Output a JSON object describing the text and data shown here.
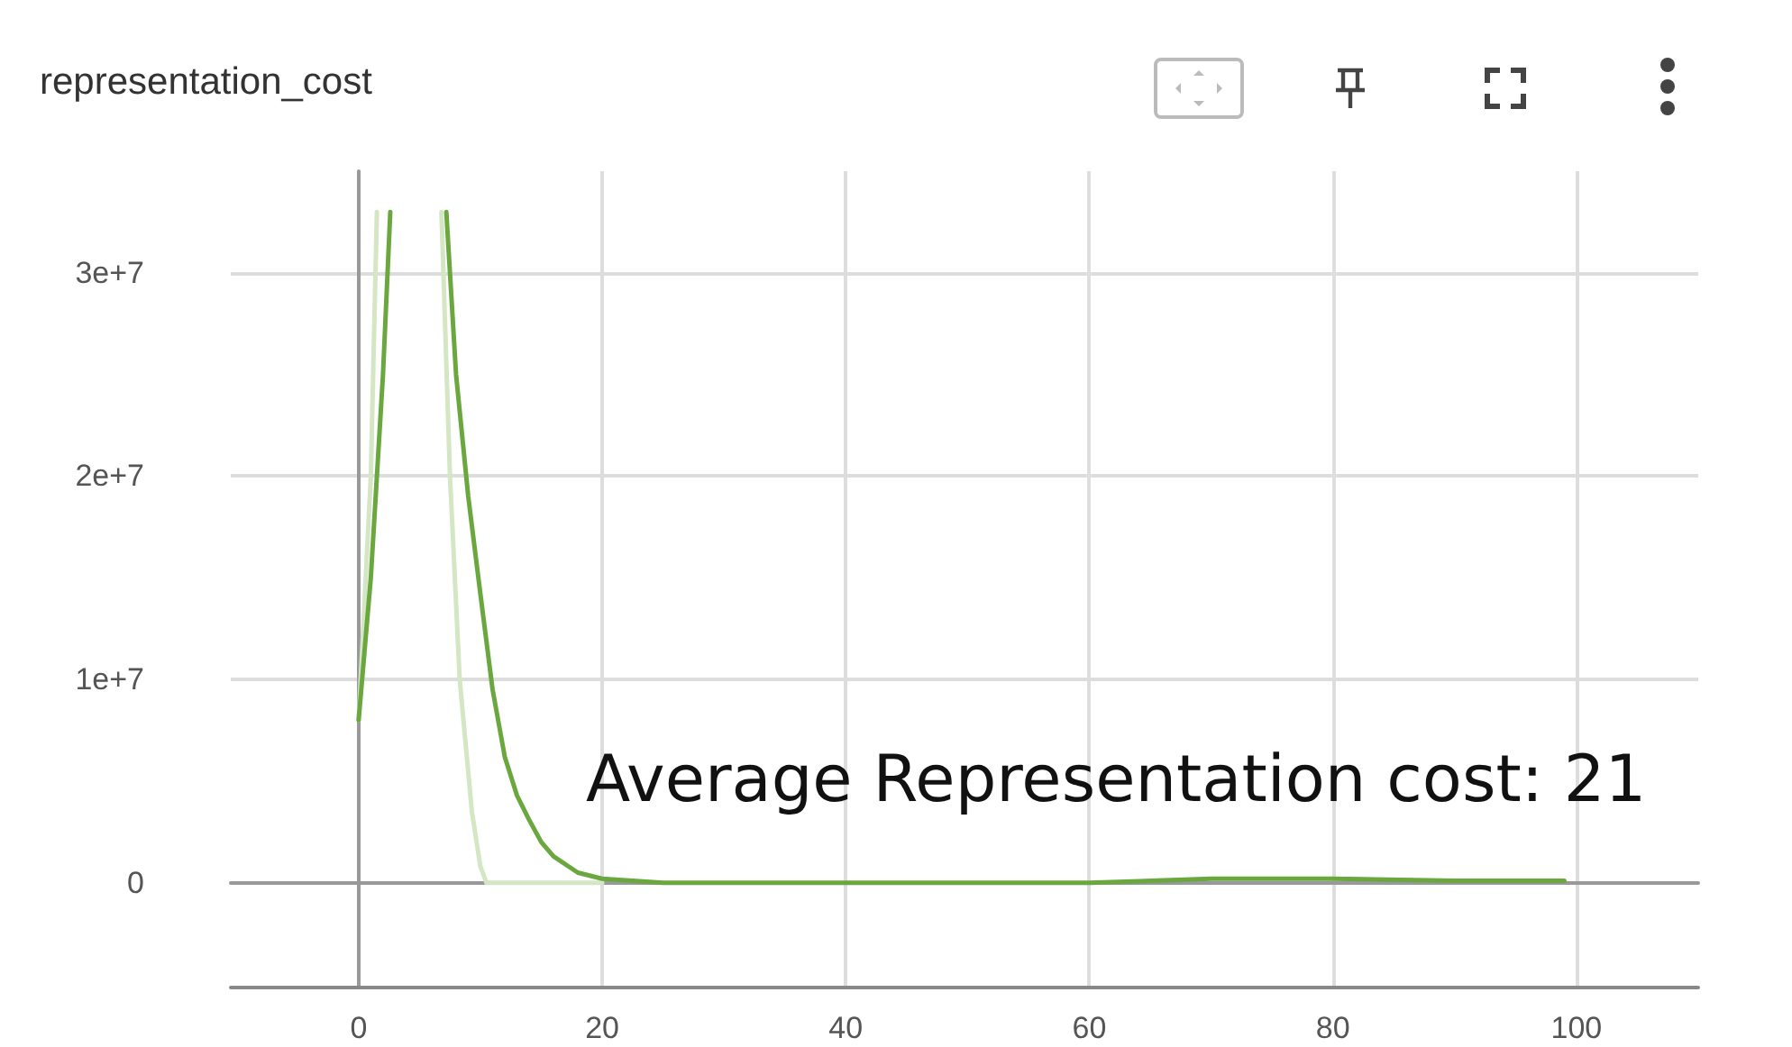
{
  "chart_data": {
    "type": "line",
    "title": "representation_cost",
    "annotations": [
      "Average Representation cost: 21"
    ],
    "xlim": [
      -10.5,
      110
    ],
    "xticks": [
      0,
      20,
      40,
      60,
      80,
      100
    ],
    "ylim": [
      -5150000,
      35000000
    ],
    "yticks": [
      {
        "value": 0,
        "label": "0"
      },
      {
        "value": 10000000,
        "label": "1e+7"
      },
      {
        "value": 20000000,
        "label": "2e+7"
      },
      {
        "value": 30000000,
        "label": "3e+7"
      }
    ],
    "grid": true,
    "marker": "none",
    "line_style": "solid",
    "series": [
      {
        "color": "#d4e6c3",
        "x": [
          0,
          1,
          1.5,
          4,
          6.8,
          7.5,
          8.3,
          9.3,
          10,
          10.5,
          12,
          15,
          20
        ],
        "values": [
          8000000,
          20000000,
          33000000,
          null,
          33000000,
          20000000,
          10000000,
          3500000,
          800000,
          0,
          0,
          0,
          0
        ]
      },
      {
        "color": "#6aa83f",
        "x": [
          0,
          1,
          2,
          2.6,
          5,
          7.2,
          8,
          9,
          10,
          11,
          12,
          13,
          14,
          15,
          16,
          18,
          20,
          25,
          30,
          40,
          50,
          60,
          70,
          75,
          80,
          90,
          99
        ],
        "values": [
          8000000,
          15000000,
          25000000,
          33000000,
          null,
          33000000,
          25000000,
          19000000,
          14200000,
          9500000,
          6200000,
          4300000,
          3100000,
          2000000,
          1300000,
          500000,
          200000,
          0,
          0,
          0,
          0,
          0,
          200000,
          200000,
          200000,
          100000,
          100000
        ]
      }
    ]
  }
}
